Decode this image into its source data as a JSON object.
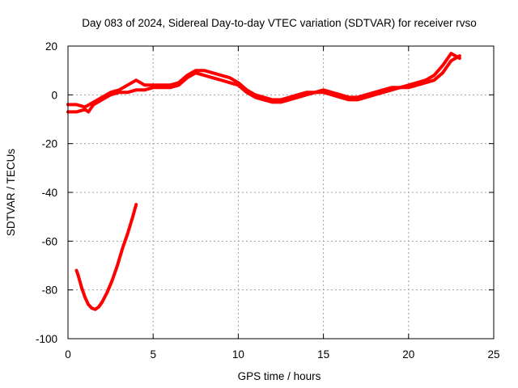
{
  "chart_data": {
    "type": "line",
    "title": "Day 083 of 2024, Sidereal Day-to-day VTEC variation (SDTVAR) for receiver rvso",
    "xlabel": "GPS time / hours",
    "ylabel": "SDTVAR / TECUs",
    "xlim": [
      0,
      25
    ],
    "ylim": [
      -100,
      20
    ],
    "xticks": [
      0,
      5,
      10,
      15,
      20,
      25
    ],
    "yticks": [
      -100,
      -80,
      -60,
      -40,
      -20,
      0,
      20
    ],
    "grid": true,
    "legend": "none",
    "colors": {
      "series": "#ff0000",
      "grid": "#a0a0a0",
      "axis": "#000000"
    },
    "series": [
      {
        "name": "main",
        "x": [
          0,
          0.5,
          1.0,
          1.2,
          1.5,
          2.0,
          2.5,
          3.0,
          3.5,
          4.0,
          4.5,
          5.0,
          5.5,
          6.0,
          6.5,
          7.0,
          7.5,
          8.0,
          8.5,
          9.0,
          9.5,
          10.0,
          10.5,
          11.0,
          11.5,
          12.0,
          12.5,
          13.0,
          13.5,
          14.0,
          14.5,
          15.0,
          15.5,
          16.0,
          16.5,
          17.0,
          17.5,
          18.0,
          18.5,
          19.0,
          19.5,
          20.0,
          20.5,
          21.0,
          21.5,
          22.0,
          22.5,
          23.0
        ],
        "y": [
          -7,
          -7,
          -6,
          -7,
          -4,
          -2,
          0,
          1,
          1,
          2,
          2,
          3,
          3,
          3,
          4,
          7,
          9,
          8,
          7,
          6,
          5,
          4,
          1,
          -1,
          -2,
          -3,
          -3,
          -2,
          -1,
          0,
          1,
          1,
          0,
          -1,
          -2,
          -2,
          -1,
          0,
          1,
          2,
          3,
          3,
          4,
          5,
          6,
          9,
          14,
          16
        ]
      },
      {
        "name": "upper-band",
        "x": [
          0,
          0.5,
          1.0,
          1.5,
          2.0,
          2.5,
          3.0,
          3.5,
          4.0,
          4.5,
          5.0,
          5.5,
          6.0,
          6.5,
          7.0,
          7.5,
          8.0,
          8.5,
          9.0,
          9.5,
          10.0,
          10.5,
          11.0,
          11.5,
          12.0,
          12.5,
          13.0,
          13.5,
          14.0,
          14.5,
          15.0,
          15.5,
          16.0,
          16.5,
          17.0,
          17.5,
          18.0,
          18.5,
          19.0,
          19.5,
          20.0,
          20.5,
          21.0,
          21.5,
          22.0,
          22.5,
          23.0
        ],
        "y": [
          -4,
          -4,
          -5,
          -3,
          -1,
          1,
          2,
          4,
          6,
          4,
          4,
          4,
          4,
          5,
          8,
          10,
          10,
          9,
          8,
          7,
          5,
          2,
          0,
          -1,
          -2,
          -2,
          -1,
          0,
          1,
          1,
          2,
          1,
          0,
          -1,
          -1,
          0,
          1,
          2,
          3,
          3,
          4,
          5,
          6,
          8,
          12,
          17,
          15
        ]
      },
      {
        "name": "lower-branch",
        "x": [
          0.5,
          0.6,
          0.8,
          1.0,
          1.2,
          1.4,
          1.6,
          1.8,
          2.0,
          2.3,
          2.6,
          2.9,
          3.2,
          3.5,
          3.8,
          4.0
        ],
        "y": [
          -72,
          -74,
          -79,
          -83,
          -86,
          -87.5,
          -88,
          -87,
          -85,
          -81,
          -76,
          -70,
          -63,
          -57,
          -50,
          -45
        ]
      }
    ]
  }
}
